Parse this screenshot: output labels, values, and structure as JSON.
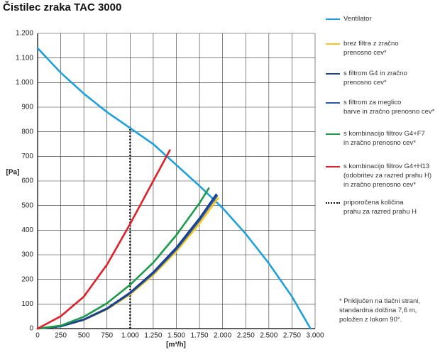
{
  "chart_data": {
    "type": "line",
    "title": "Čistilec zraka TAC 3000",
    "x_label": "[m³/h]",
    "y_label": "[Pa]",
    "xlim": [
      0,
      3000
    ],
    "ylim": [
      0,
      1200
    ],
    "xticks": [
      0,
      250,
      500,
      750,
      {
        "value": 1000,
        "label": "1.000"
      },
      {
        "value": 1250,
        "label": "1.250"
      },
      {
        "value": 1500,
        "label": "1.500"
      },
      {
        "value": 1750,
        "label": "1.750"
      },
      {
        "value": 2000,
        "label": "2.000"
      },
      {
        "value": 2250,
        "label": "2.250"
      },
      {
        "value": 2500,
        "label": "2.500"
      },
      {
        "value": 2750,
        "label": "2.750"
      },
      {
        "value": 3000,
        "label": "3.000"
      }
    ],
    "yticks": [
      0,
      100,
      200,
      300,
      400,
      500,
      600,
      700,
      800,
      900,
      {
        "value": 1000,
        "label": "1.000"
      },
      {
        "value": 1100,
        "label": "1.100"
      },
      {
        "value": 1200,
        "label": "1.200"
      }
    ],
    "grid": true,
    "series": [
      {
        "name": "Ventilator",
        "color": "#1ea0dc",
        "x": [
          0,
          250,
          500,
          750,
          1000,
          1250,
          1500,
          1750,
          2000,
          2250,
          2500,
          2750,
          2950
        ],
        "values": [
          1140,
          1040,
          955,
          880,
          815,
          750,
          665,
          580,
          490,
          385,
          265,
          130,
          0
        ]
      },
      {
        "name": "brez filtra z zračno\nprenosno cev*",
        "color": "#f5c518",
        "x": [
          0,
          250,
          500,
          750,
          1000,
          1250,
          1500,
          1750,
          1950
        ],
        "values": [
          0,
          9,
          35,
          78,
          139,
          218,
          314,
          427,
          530
        ]
      },
      {
        "name": "s filtrom G4 in zračno\nprenosno cev*",
        "color": "#1a3f8f",
        "x": [
          0,
          250,
          500,
          750,
          1000,
          1250,
          1500,
          1750,
          1930
        ],
        "values": [
          0,
          9,
          37,
          82,
          146,
          229,
          329,
          448,
          545
        ]
      },
      {
        "name": "s filtrom za meglico\nbarve in zračno prenosno cev*",
        "color": "#2b5aa6",
        "x": [
          0,
          250,
          500,
          750,
          1000,
          1250,
          1500,
          1750,
          1940
        ],
        "values": [
          0,
          9,
          36,
          80,
          143,
          224,
          322,
          440,
          540
        ]
      },
      {
        "name": "s kombinacijo filtrov G4+F7\nin zračno prenosno cev*",
        "color": "#1b9a4a",
        "x": [
          0,
          250,
          500,
          750,
          1000,
          1250,
          1500,
          1750,
          1850
        ],
        "values": [
          0,
          12,
          48,
          103,
          178,
          268,
          380,
          510,
          570
        ]
      },
      {
        "name": "s kombinacijo filtrov G4+H13\n(odobritev za razred prahu H)\nin zračno prenosno cev*",
        "color": "#e0212b",
        "x": [
          0,
          250,
          500,
          750,
          1000,
          1250,
          1430
        ],
        "values": [
          0,
          50,
          130,
          260,
          425,
          600,
          725
        ]
      },
      {
        "name": "priporočena količina\nprahu za razred prahu H",
        "color": "#111111",
        "style": "dotted",
        "x": [
          1000,
          1000
        ],
        "values": [
          0,
          820
        ]
      }
    ],
    "note": "*  Priključen na tlačni strani,\n   standardna dolžina 7,6 m,\n   položen z lokom 90°."
  }
}
